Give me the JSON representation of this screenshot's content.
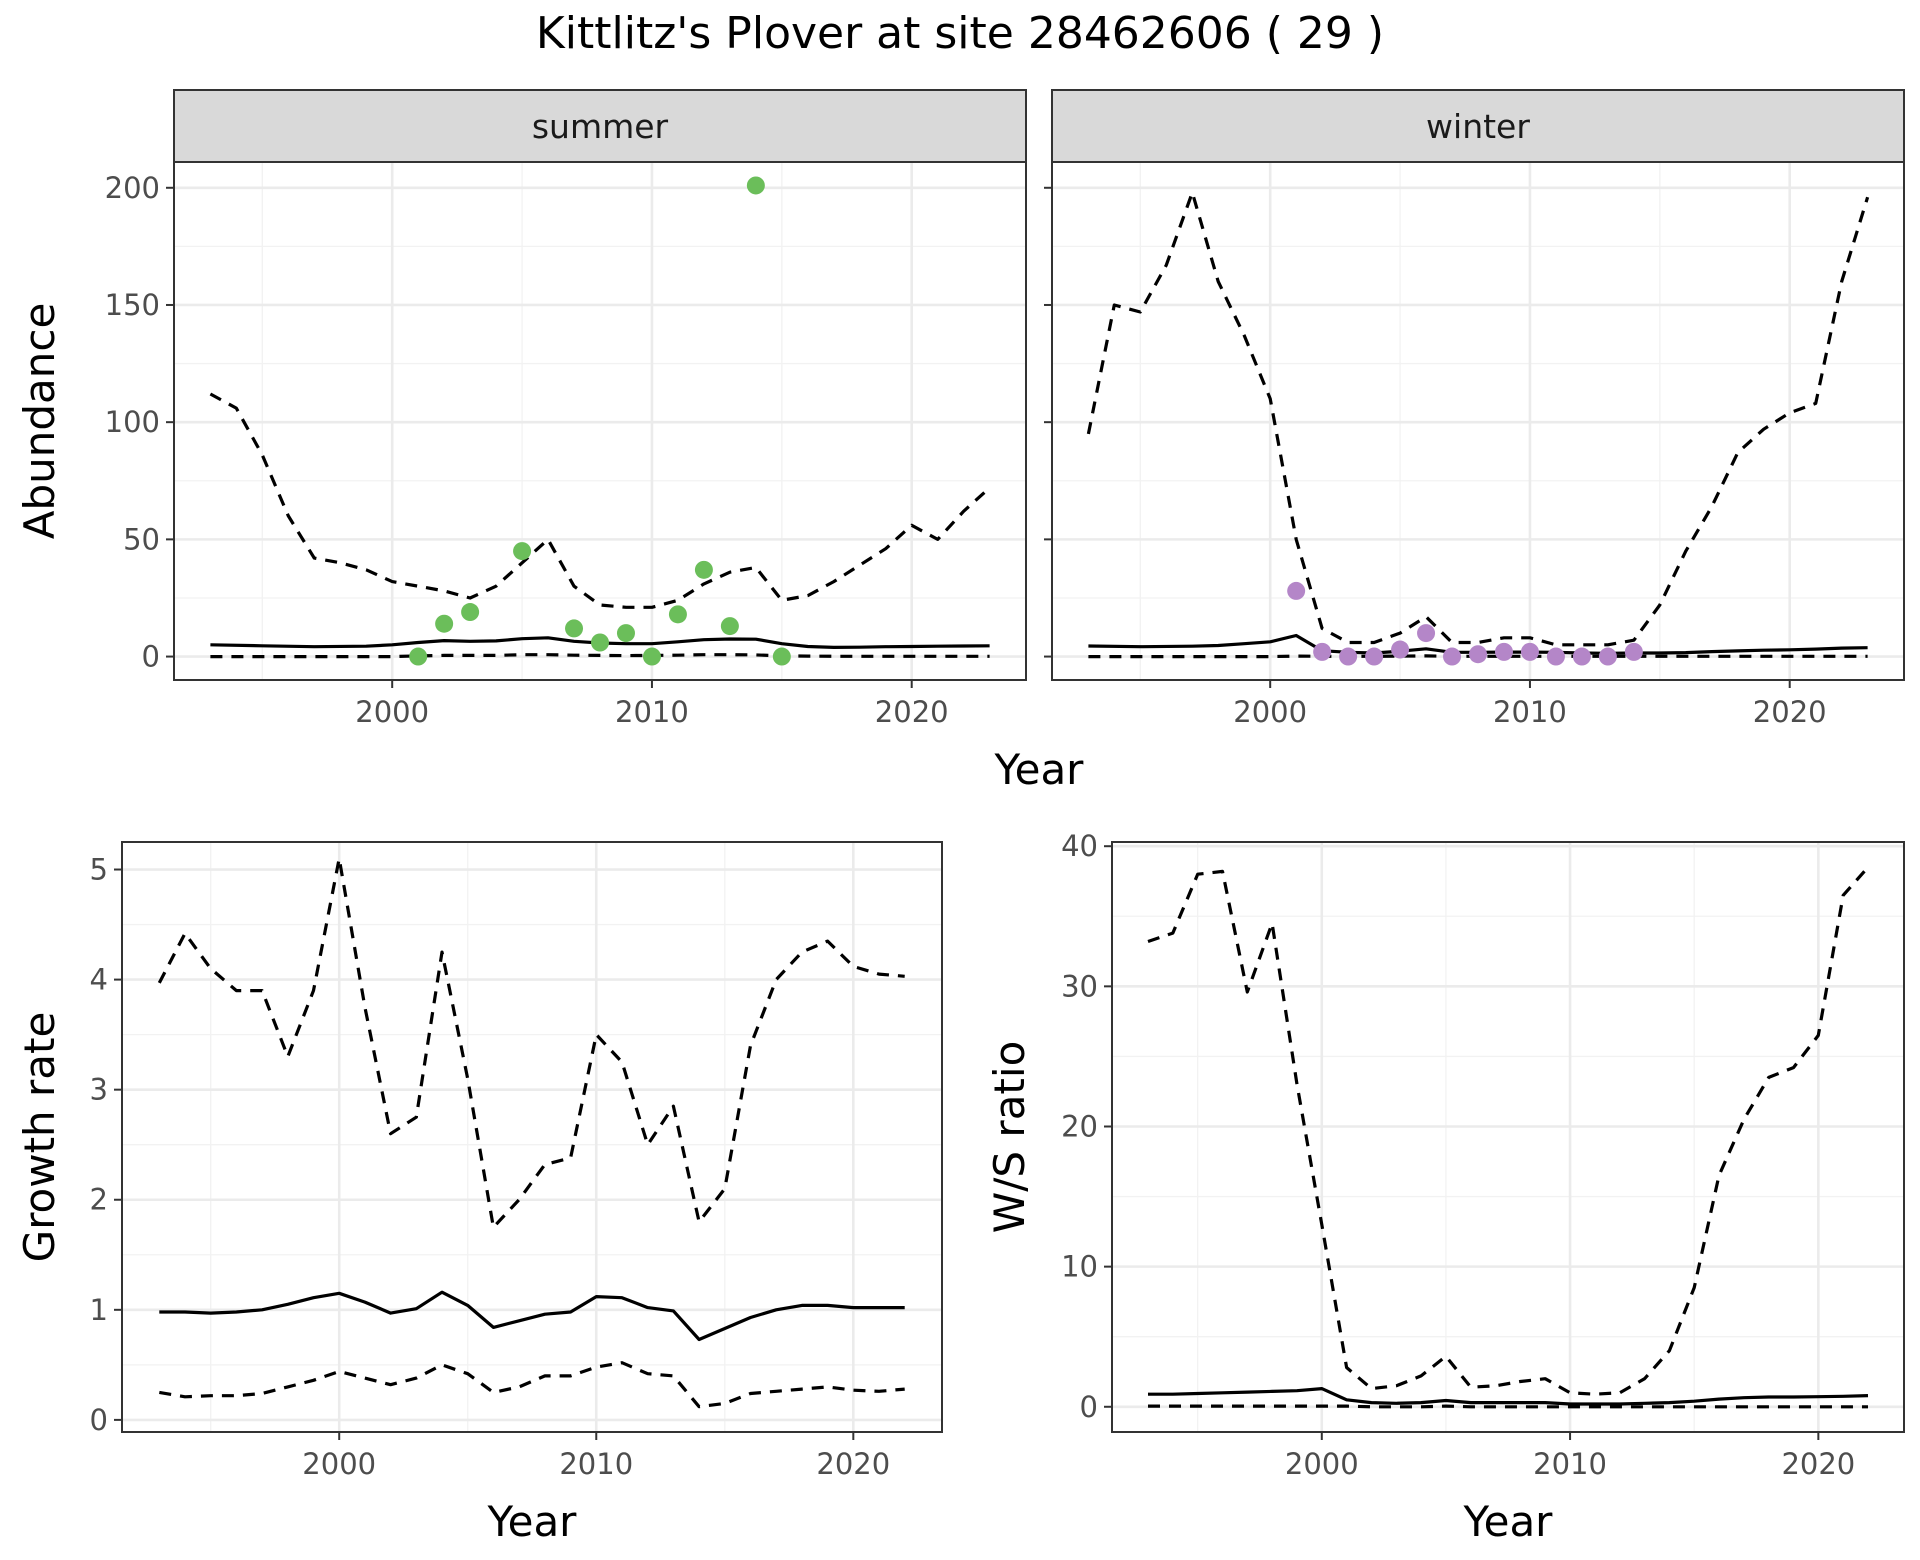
{
  "title": "Kittlitz's Plover at site 28462606 ( 29 )",
  "colors": {
    "summer_points": "#6BBE5A",
    "winter_points": "#B486C8",
    "lines": "#000000",
    "grid_major": "#EBEBEB",
    "grid_minor": "#F2F2F2",
    "strip_fill": "#D9D9D9"
  },
  "chart_data": [
    {
      "type": "line",
      "panel": "summer",
      "facet_label": "summer",
      "xlabel": "",
      "ylabel": "Abundance",
      "xlim": [
        1991.6,
        2024.4
      ],
      "ylim": [
        -10,
        211
      ],
      "xticks": [
        2000,
        2010,
        2020
      ],
      "yticks": [
        0,
        50,
        100,
        150,
        200
      ],
      "grid": true,
      "series": [
        {
          "role": "mean",
          "style": "solid",
          "x": [
            1993,
            1995,
            1997,
            1999,
            2000,
            2001,
            2002,
            2003,
            2004,
            2005,
            2006,
            2007,
            2008,
            2009,
            2010,
            2011,
            2012,
            2013,
            2014,
            2015,
            2016,
            2017,
            2018,
            2019,
            2020,
            2021,
            2022,
            2023
          ],
          "values": [
            5,
            4.6,
            4.2,
            4.4,
            5,
            6,
            6.8,
            6.5,
            6.7,
            7.6,
            8,
            6.5,
            5.8,
            5.5,
            5.5,
            6.3,
            7.2,
            7.5,
            7.4,
            5.5,
            4.3,
            3.9,
            4,
            4.2,
            4.3,
            4.4,
            4.5,
            4.6
          ]
        },
        {
          "role": "upper",
          "style": "dashed",
          "x": [
            1993,
            1994,
            1995,
            1996,
            1997,
            1998,
            1999,
            2000,
            2001,
            2002,
            2003,
            2004,
            2005,
            2006,
            2007,
            2008,
            2009,
            2010,
            2011,
            2012,
            2013,
            2014,
            2015,
            2016,
            2017,
            2018,
            2019,
            2020,
            2021,
            2022,
            2023
          ],
          "values": [
            112,
            106,
            86,
            60,
            42,
            40,
            37,
            32,
            30,
            28,
            25,
            30,
            40,
            50,
            30,
            22,
            21,
            21,
            24,
            31,
            36,
            38,
            24,
            26,
            32,
            39,
            46,
            56,
            50,
            62,
            72
          ]
        },
        {
          "role": "lower",
          "style": "dashed",
          "x": [
            1993,
            1995,
            1997,
            1999,
            2000,
            2001,
            2002,
            2003,
            2004,
            2005,
            2006,
            2007,
            2008,
            2009,
            2010,
            2011,
            2012,
            2013,
            2014,
            2015,
            2016,
            2017,
            2018,
            2019,
            2020,
            2021,
            2022,
            2023
          ],
          "values": [
            0,
            0,
            0,
            0,
            0,
            0.3,
            0.5,
            0.5,
            0.5,
            0.8,
            0.8,
            0.6,
            0.5,
            0.4,
            0.5,
            0.6,
            0.8,
            0.8,
            0.7,
            0.3,
            0.2,
            0.1,
            0.1,
            0.1,
            0.1,
            0.1,
            0.1,
            0.1
          ]
        },
        {
          "role": "observed",
          "style": "points",
          "x": [
            2001,
            2002,
            2003,
            2005,
            2007,
            2008,
            2009,
            2010,
            2011,
            2012,
            2013,
            2014,
            2015
          ],
          "values": [
            0,
            14,
            19,
            45,
            12,
            6,
            10,
            0,
            18,
            37,
            13,
            201,
            0
          ]
        }
      ]
    },
    {
      "type": "line",
      "panel": "winter",
      "facet_label": "winter",
      "xlabel": "",
      "ylabel": "",
      "xlim": [
        1991.6,
        2024.4
      ],
      "ylim": [
        -10,
        211
      ],
      "xticks": [
        2000,
        2010,
        2020
      ],
      "yticks": [
        0,
        50,
        100,
        150,
        200
      ],
      "grid": true,
      "series": [
        {
          "role": "mean",
          "style": "solid",
          "x": [
            1993,
            1995,
            1997,
            1998,
            1999,
            2000,
            2001,
            2002,
            2003,
            2004,
            2005,
            2006,
            2007,
            2008,
            2009,
            2010,
            2011,
            2012,
            2013,
            2014,
            2015,
            2016,
            2017,
            2018,
            2019,
            2020,
            2021,
            2022,
            2023
          ],
          "values": [
            4.5,
            4.2,
            4.4,
            4.7,
            5.5,
            6.3,
            9,
            2.5,
            1.8,
            1.5,
            2.3,
            3.3,
            1.8,
            1.8,
            1.9,
            1.9,
            1.8,
            1.5,
            1.4,
            1.5,
            1.5,
            1.7,
            2.1,
            2.4,
            2.7,
            2.9,
            3.2,
            3.6,
            3.8
          ]
        },
        {
          "role": "upper",
          "style": "dashed",
          "x": [
            1993,
            1994,
            1995,
            1996,
            1997,
            1998,
            1999,
            2000,
            2001,
            2002,
            2003,
            2004,
            2005,
            2006,
            2007,
            2008,
            2009,
            2010,
            2011,
            2012,
            2013,
            2014,
            2015,
            2016,
            2017,
            2018,
            2019,
            2020,
            2021,
            2022,
            2023
          ],
          "values": [
            95,
            150,
            147,
            167,
            198,
            160,
            137,
            110,
            50,
            12,
            6,
            6,
            10,
            17,
            6,
            6,
            8,
            8,
            5,
            5,
            5,
            7,
            22,
            45,
            64,
            87,
            97,
            104,
            108,
            160,
            196
          ]
        },
        {
          "role": "lower",
          "style": "dashed",
          "x": [
            1993,
            1995,
            1997,
            1999,
            2000,
            2001,
            2002,
            2003,
            2004,
            2005,
            2006,
            2007,
            2008,
            2009,
            2010,
            2011,
            2012,
            2013,
            2014,
            2015,
            2016,
            2017,
            2018,
            2019,
            2020,
            2021,
            2022,
            2023
          ],
          "values": [
            0,
            0,
            0,
            0,
            0,
            0.2,
            0.1,
            0.1,
            0.1,
            0.2,
            0.3,
            0.1,
            0.1,
            0.1,
            0.1,
            0.1,
            0.1,
            0.1,
            0.1,
            0.1,
            0.1,
            0.1,
            0.1,
            0.1,
            0.1,
            0.1,
            0.1,
            0.1
          ]
        },
        {
          "role": "observed",
          "style": "points",
          "x": [
            2001,
            2002,
            2003,
            2004,
            2005,
            2006,
            2007,
            2008,
            2009,
            2010,
            2011,
            2012,
            2013,
            2014
          ],
          "values": [
            28,
            2,
            0,
            0,
            3,
            10,
            0,
            1,
            2,
            2,
            0,
            0,
            0,
            2
          ]
        }
      ]
    },
    {
      "type": "line",
      "panel": "growth",
      "xlabel": "Year",
      "ylabel": "Growth rate",
      "xlim": [
        1991.55,
        2023.45
      ],
      "ylim": [
        -0.11,
        5.25
      ],
      "xticks": [
        2000,
        2010,
        2020
      ],
      "yticks": [
        0,
        1,
        2,
        3,
        4,
        5
      ],
      "grid": true,
      "series": [
        {
          "role": "mean",
          "style": "solid",
          "x": [
            1993,
            1994,
            1995,
            1996,
            1997,
            1998,
            1999,
            2000,
            2001,
            2002,
            2003,
            2004,
            2005,
            2006,
            2007,
            2008,
            2009,
            2010,
            2011,
            2012,
            2013,
            2014,
            2015,
            2016,
            2017,
            2018,
            2019,
            2020,
            2021,
            2022
          ],
          "values": [
            0.98,
            0.98,
            0.97,
            0.98,
            1.0,
            1.05,
            1.11,
            1.15,
            1.07,
            0.97,
            1.01,
            1.16,
            1.04,
            0.84,
            0.9,
            0.96,
            0.98,
            1.12,
            1.11,
            1.02,
            0.99,
            0.73,
            0.83,
            0.93,
            1.0,
            1.04,
            1.04,
            1.02,
            1.02,
            1.02
          ]
        },
        {
          "role": "upper",
          "style": "dashed",
          "x": [
            1993,
            1994,
            1995,
            1996,
            1997,
            1998,
            1999,
            2000,
            2001,
            2002,
            2003,
            2004,
            2005,
            2006,
            2007,
            2008,
            2009,
            2010,
            2011,
            2012,
            2013,
            2014,
            2015,
            2016,
            2017,
            2018,
            2019,
            2020,
            2021,
            2022
          ],
          "values": [
            3.97,
            4.42,
            4.1,
            3.9,
            3.9,
            3.3,
            3.9,
            5.1,
            3.75,
            2.6,
            2.75,
            4.25,
            3.1,
            1.75,
            2.0,
            2.32,
            2.38,
            3.5,
            3.25,
            2.5,
            2.85,
            1.8,
            2.1,
            3.4,
            4.0,
            4.25,
            4.35,
            4.12,
            4.05,
            4.03
          ]
        },
        {
          "role": "lower",
          "style": "dashed",
          "x": [
            1993,
            1994,
            1995,
            1996,
            1997,
            1998,
            1999,
            2000,
            2001,
            2002,
            2003,
            2004,
            2005,
            2006,
            2007,
            2008,
            2009,
            2010,
            2011,
            2012,
            2013,
            2014,
            2015,
            2016,
            2017,
            2018,
            2019,
            2020,
            2021,
            2022
          ],
          "values": [
            0.25,
            0.21,
            0.22,
            0.22,
            0.24,
            0.3,
            0.36,
            0.44,
            0.38,
            0.32,
            0.38,
            0.5,
            0.42,
            0.25,
            0.3,
            0.4,
            0.4,
            0.48,
            0.52,
            0.42,
            0.4,
            0.12,
            0.15,
            0.24,
            0.26,
            0.28,
            0.3,
            0.27,
            0.26,
            0.28
          ]
        }
      ]
    },
    {
      "type": "line",
      "panel": "ratio",
      "xlabel": "Year",
      "ylabel": "W/S ratio",
      "xlim": [
        1991.55,
        2023.45
      ],
      "ylim": [
        -1.8,
        40.3
      ],
      "xticks": [
        2000,
        2010,
        2020
      ],
      "yticks": [
        0,
        10,
        20,
        30,
        40
      ],
      "grid": true,
      "series": [
        {
          "role": "mean",
          "style": "solid",
          "x": [
            1993,
            1994,
            1995,
            1996,
            1997,
            1998,
            1999,
            2000,
            2001,
            2002,
            2003,
            2004,
            2005,
            2006,
            2007,
            2008,
            2009,
            2010,
            2011,
            2012,
            2013,
            2014,
            2015,
            2016,
            2017,
            2018,
            2019,
            2020,
            2021,
            2022
          ],
          "values": [
            0.9,
            0.9,
            0.95,
            1.0,
            1.05,
            1.1,
            1.15,
            1.3,
            0.5,
            0.3,
            0.25,
            0.3,
            0.45,
            0.3,
            0.3,
            0.3,
            0.3,
            0.2,
            0.2,
            0.2,
            0.25,
            0.3,
            0.4,
            0.55,
            0.65,
            0.7,
            0.7,
            0.72,
            0.75,
            0.8
          ]
        },
        {
          "role": "upper",
          "style": "dashed",
          "x": [
            1993,
            1994,
            1995,
            1996,
            1997,
            1998,
            1999,
            2000,
            2001,
            2002,
            2003,
            2004,
            2005,
            2006,
            2007,
            2008,
            2009,
            2010,
            2011,
            2012,
            2013,
            2014,
            2015,
            2016,
            2017,
            2018,
            2019,
            2020,
            2021,
            2022
          ],
          "values": [
            33.2,
            33.8,
            38.0,
            38.2,
            29.6,
            34.5,
            23.0,
            13.0,
            2.8,
            1.3,
            1.5,
            2.2,
            3.6,
            1.4,
            1.5,
            1.8,
            2.0,
            1.0,
            0.9,
            1.0,
            2.0,
            4.0,
            8.5,
            16.5,
            20.5,
            23.5,
            24.2,
            26.5,
            36.5,
            38.5
          ]
        },
        {
          "role": "lower",
          "style": "dashed",
          "x": [
            1993,
            1994,
            1995,
            1996,
            1997,
            1998,
            1999,
            2000,
            2001,
            2002,
            2003,
            2004,
            2005,
            2006,
            2007,
            2008,
            2009,
            2010,
            2011,
            2012,
            2013,
            2014,
            2015,
            2016,
            2017,
            2018,
            2019,
            2020,
            2021,
            2022
          ],
          "values": [
            0.05,
            0.05,
            0.05,
            0.05,
            0.05,
            0.05,
            0.05,
            0.05,
            0.05,
            0.0,
            0.0,
            0.0,
            0.05,
            0.0,
            0.0,
            0.0,
            0.0,
            0.0,
            0.0,
            0.0,
            0.0,
            0.0,
            0.0,
            0.0,
            0.0,
            0.0,
            0.0,
            0.0,
            0.0,
            0.0
          ]
        }
      ]
    }
  ]
}
